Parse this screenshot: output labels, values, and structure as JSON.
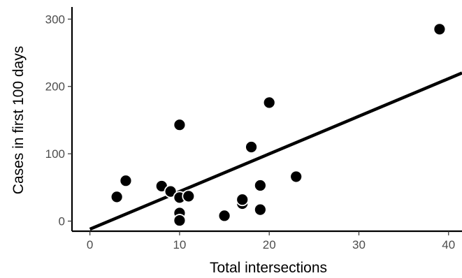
{
  "chart_data": {
    "type": "scatter",
    "xlabel": "Total intersections",
    "ylabel": "Cases in first 100 days",
    "xlim": [
      -2,
      41.5
    ],
    "ylim": [
      -15,
      318
    ],
    "x_ticks": [
      0,
      10,
      20,
      30,
      40
    ],
    "x_tick_labels": [
      "0",
      "10",
      "20",
      "30",
      "40"
    ],
    "y_ticks": [
      0,
      100,
      200,
      300
    ],
    "y_tick_labels": [
      "0",
      "100",
      "200",
      "300"
    ],
    "grid": false,
    "points": [
      {
        "x": 3,
        "y": 36
      },
      {
        "x": 4,
        "y": 60
      },
      {
        "x": 8,
        "y": 52
      },
      {
        "x": 9,
        "y": 44
      },
      {
        "x": 10,
        "y": 143
      },
      {
        "x": 10,
        "y": 35
      },
      {
        "x": 10,
        "y": 12
      },
      {
        "x": 10,
        "y": 1
      },
      {
        "x": 11,
        "y": 37
      },
      {
        "x": 15,
        "y": 8
      },
      {
        "x": 17,
        "y": 26
      },
      {
        "x": 17,
        "y": 32
      },
      {
        "x": 18,
        "y": 110
      },
      {
        "x": 19,
        "y": 53
      },
      {
        "x": 19,
        "y": 17
      },
      {
        "x": 20,
        "y": 176
      },
      {
        "x": 23,
        "y": 66
      },
      {
        "x": 39,
        "y": 285
      }
    ],
    "fit_line": {
      "x": [
        0,
        41.5
      ],
      "y": [
        -12,
        220
      ]
    },
    "colors": {
      "points": "#000000",
      "point_edge": "#ffffff",
      "line": "#000000",
      "axis": "#000000",
      "tick_label": "#4d4d4d"
    }
  }
}
